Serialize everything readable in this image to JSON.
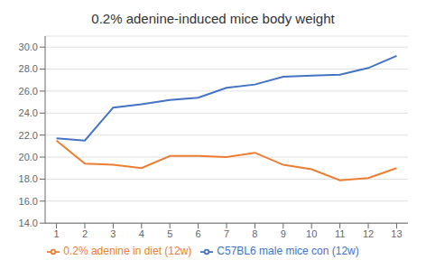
{
  "chart_data": {
    "type": "line",
    "title": "0.2% adenine-induced mice body weight",
    "x": [
      1,
      2,
      3,
      4,
      5,
      6,
      7,
      8,
      9,
      10,
      11,
      12,
      13
    ],
    "series": [
      {
        "name": "C57BL6 male mice con (12w)",
        "color": "#4472C4",
        "values": [
          21.7,
          21.5,
          24.5,
          24.8,
          25.2,
          25.4,
          26.3,
          26.6,
          27.3,
          27.4,
          27.5,
          28.1,
          29.2
        ]
      },
      {
        "name": "0.2% adenine in diet (12w)",
        "color": "#ED7D31",
        "values": [
          21.5,
          19.4,
          19.3,
          19.0,
          20.1,
          20.1,
          20.0,
          20.4,
          19.3,
          18.9,
          17.9,
          18.1,
          19.0
        ]
      }
    ],
    "xlim": [
      0.6,
      13.4
    ],
    "xticks": [
      1,
      2,
      3,
      4,
      5,
      6,
      7,
      8,
      9,
      10,
      11,
      12,
      13
    ],
    "ylim": [
      14.0,
      31.0
    ],
    "yticks": [
      {
        "value": 14.0,
        "label": "14.0"
      },
      {
        "value": 16.0,
        "label": "16.0"
      },
      {
        "value": 18.0,
        "label": "18.0"
      },
      {
        "value": 20.0,
        "label": "20.0"
      },
      {
        "value": 22.0,
        "label": "22.0"
      },
      {
        "value": 24.0,
        "label": "24.0"
      },
      {
        "value": 26.0,
        "label": "26.0"
      },
      {
        "value": 28.0,
        "label": "28.0"
      },
      {
        "value": 30.0,
        "label": "30.0"
      }
    ],
    "grid": true,
    "legend": "bottom"
  }
}
